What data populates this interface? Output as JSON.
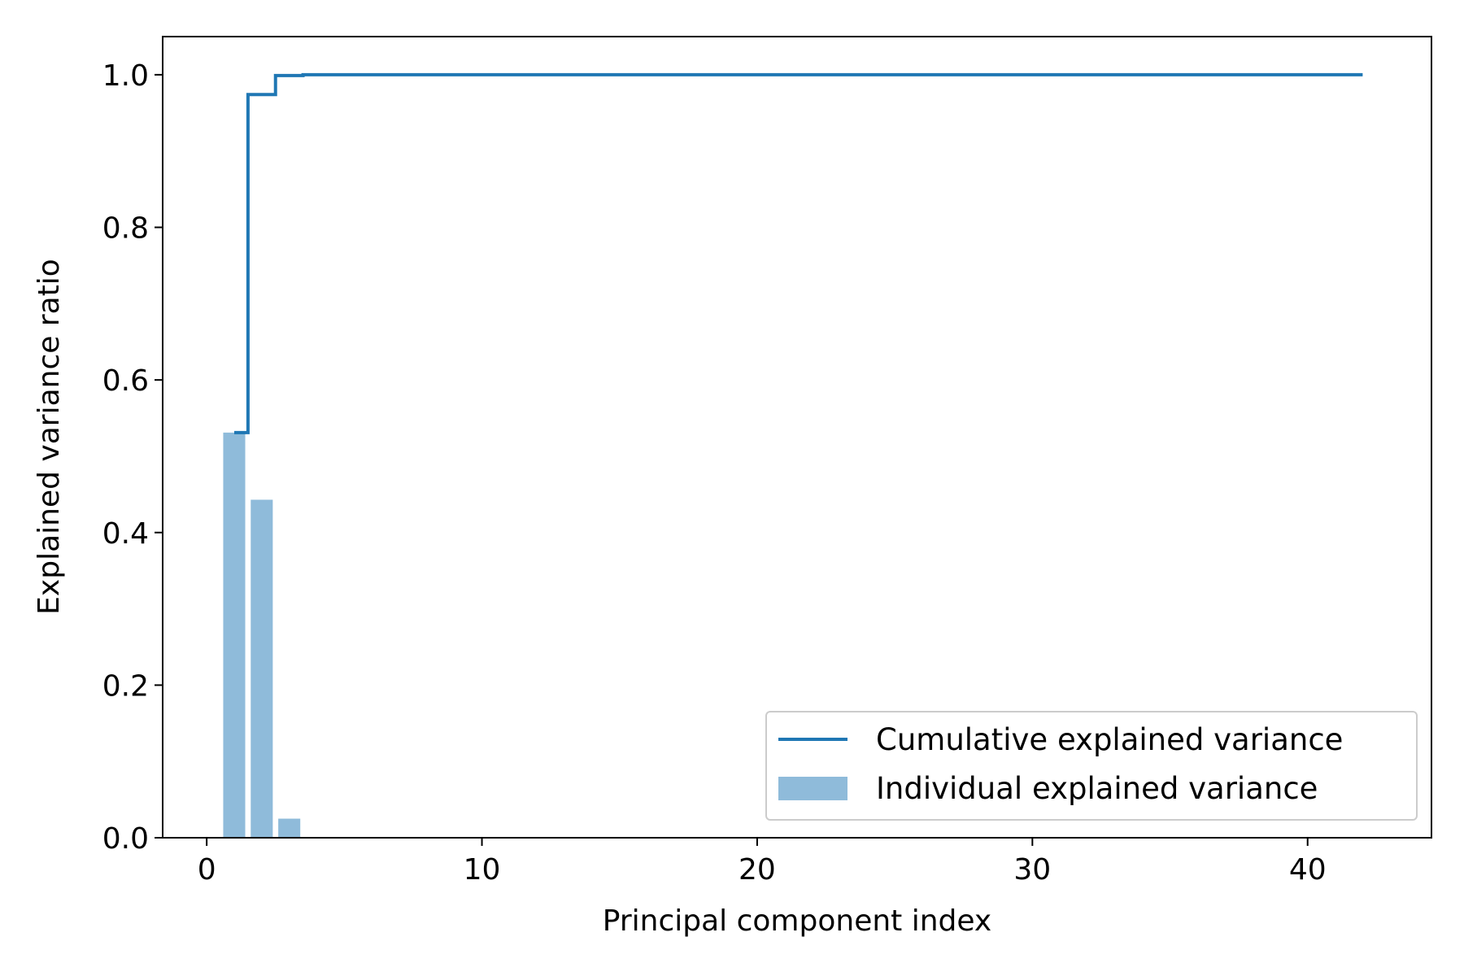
{
  "chart_data": {
    "type": "bar",
    "xlabel": "Principal component index",
    "ylabel": "Explained variance ratio",
    "xlim": [
      -1.6,
      44.5
    ],
    "ylim": [
      0,
      1.05
    ],
    "grid": false,
    "legend_position": "bottom-right",
    "x_ticks": [
      0,
      10,
      20,
      30,
      40
    ],
    "x_tick_labels": [
      "0",
      "10",
      "20",
      "30",
      "40"
    ],
    "y_ticks": [
      0.0,
      0.2,
      0.4,
      0.6,
      0.8,
      1.0
    ],
    "y_tick_labels": [
      "0.0",
      "0.2",
      "0.4",
      "0.6",
      "0.8",
      "1.0"
    ],
    "series": [
      {
        "name": "Individual explained variance",
        "type": "bar",
        "color": "#8fbbda",
        "x": [
          1,
          2,
          3,
          4,
          5,
          6,
          7,
          8,
          9,
          10,
          11,
          12,
          13,
          14,
          15,
          16,
          17,
          18,
          19,
          20,
          21,
          22,
          23,
          24,
          25,
          26,
          27,
          28,
          29,
          30,
          31,
          32,
          33,
          34,
          35,
          36,
          37,
          38,
          39,
          40,
          41,
          42
        ],
        "values": [
          0.531,
          0.443,
          0.025,
          0.001,
          0,
          0,
          0,
          0,
          0,
          0,
          0,
          0,
          0,
          0,
          0,
          0,
          0,
          0,
          0,
          0,
          0,
          0,
          0,
          0,
          0,
          0,
          0,
          0,
          0,
          0,
          0,
          0,
          0,
          0,
          0,
          0,
          0,
          0,
          0,
          0,
          0,
          0
        ]
      },
      {
        "name": "Cumulative explained variance",
        "type": "step",
        "color": "#1f77b4",
        "x": [
          1,
          2,
          3,
          4,
          5,
          6,
          7,
          8,
          9,
          10,
          11,
          12,
          13,
          14,
          15,
          16,
          17,
          18,
          19,
          20,
          21,
          22,
          23,
          24,
          25,
          26,
          27,
          28,
          29,
          30,
          31,
          32,
          33,
          34,
          35,
          36,
          37,
          38,
          39,
          40,
          41,
          42
        ],
        "values": [
          0.531,
          0.974,
          0.999,
          1.0,
          1.0,
          1.0,
          1.0,
          1.0,
          1.0,
          1.0,
          1.0,
          1.0,
          1.0,
          1.0,
          1.0,
          1.0,
          1.0,
          1.0,
          1.0,
          1.0,
          1.0,
          1.0,
          1.0,
          1.0,
          1.0,
          1.0,
          1.0,
          1.0,
          1.0,
          1.0,
          1.0,
          1.0,
          1.0,
          1.0,
          1.0,
          1.0,
          1.0,
          1.0,
          1.0,
          1.0,
          1.0,
          1.0
        ]
      }
    ],
    "legend": [
      {
        "label": "Cumulative explained variance",
        "kind": "line"
      },
      {
        "label": "Individual explained variance",
        "kind": "patch"
      }
    ]
  }
}
